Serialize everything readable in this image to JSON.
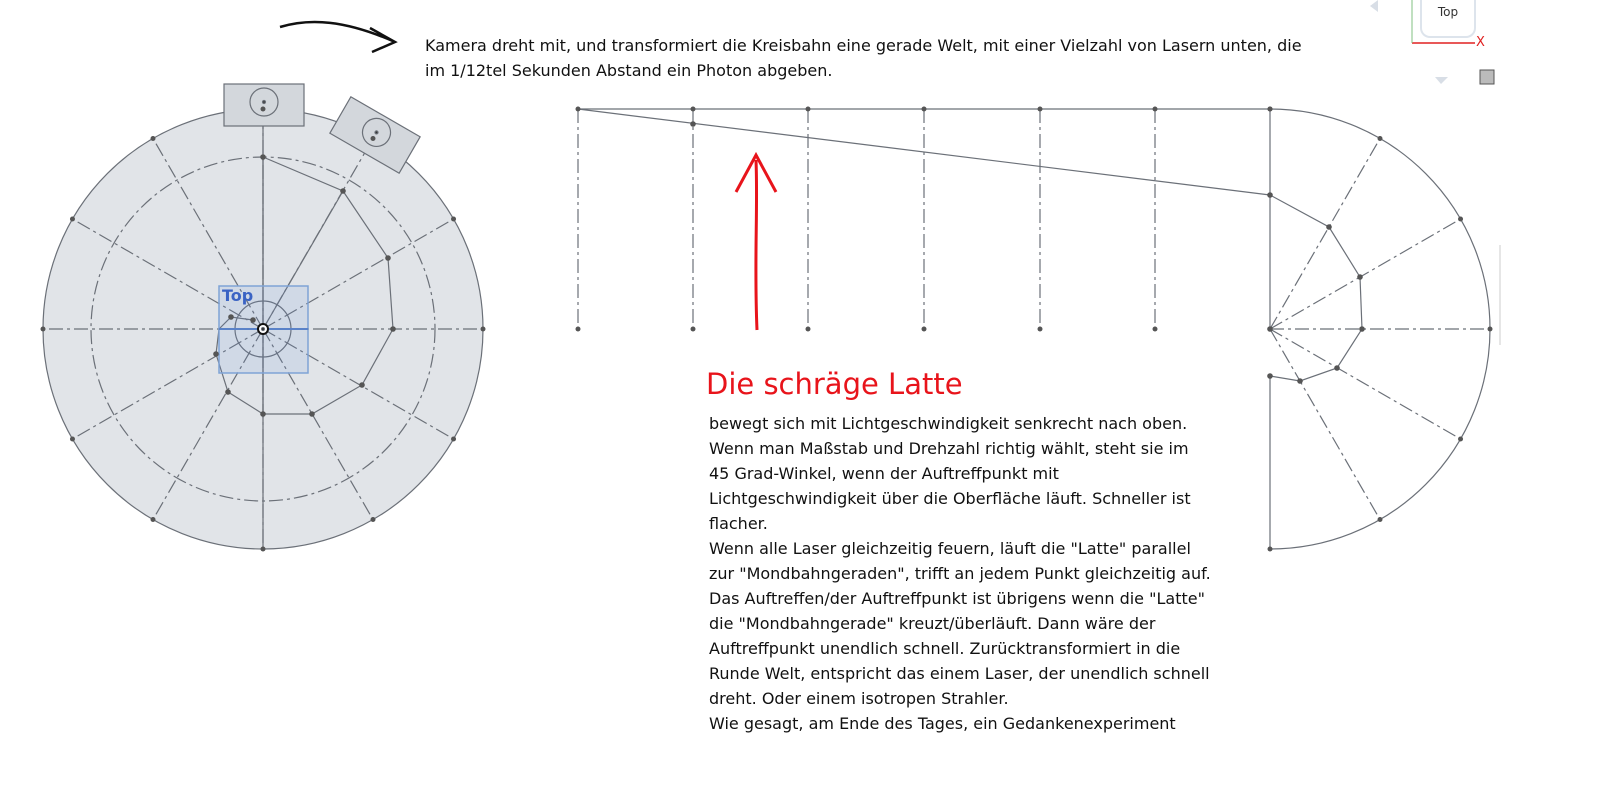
{
  "caption": "Kamera dreht mit, und transformiert die Kreisbahn eine gerade Welt, mit einer Vielzahl von Lasern unten, die im 1/12tel Sekunden Abstand ein Photon abgeben.",
  "heading": "Die schräge Latte",
  "body": "bewegt sich mit Lichtgeschwindigkeit senkrecht nach oben.\nWenn man Maßstab und Drehzahl richtig wählt, steht sie im\n45 Grad-Winkel, wenn der Auftreffpunkt mit\nLichtgeschwindigkeit über die Oberfläche läuft. Schneller ist\nflacher.\nWenn alle Laser gleichzeitig feuern, läuft die \"Latte\" parallel\nzur \"Mondbahngeraden\", trifft an jedem Punkt gleichzeitig auf.\nDas Auftreffen/der Auftreffpunkt ist übrigens wenn die \"Latte\"\ndie \"Mondbahngerade\" kreuzt/überläuft. Dann wäre der\nAuftreffpunkt unendlich schnell. Zurücktransformiert in die\nRunde Welt, entspricht das einem Laser, der unendlich schnell\ndreht. Oder einem isotropen Strahler.\nWie gesagt, am Ende des Tages, ein Gedankenexperiment",
  "view_label": "Top",
  "viewcube_label": "Top",
  "axis_label": "X",
  "colors": {
    "annotation_red": "#e8141b",
    "disc_fill": "#e1e4e8",
    "line": "#6b7078",
    "view_blue": "#3a63c4"
  }
}
